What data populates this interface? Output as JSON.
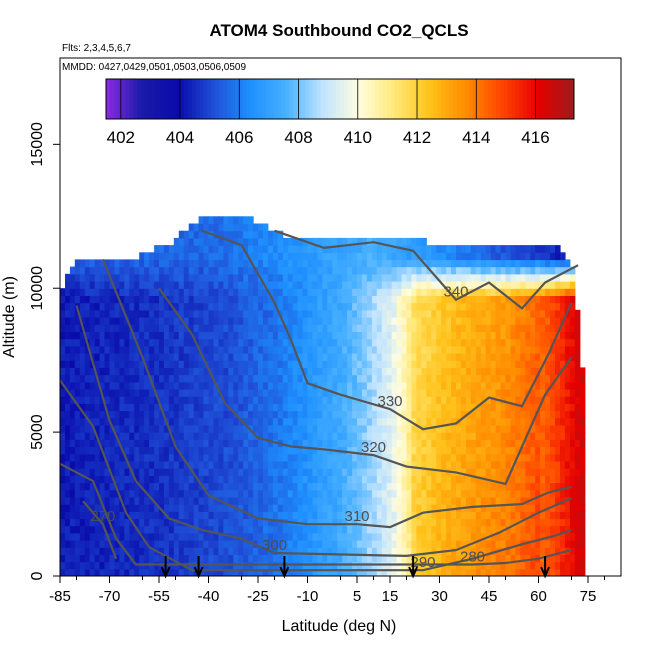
{
  "chart_data": {
    "type": "heatmap",
    "title": "ATOM4 Southbound CO2_QCLS",
    "subtitle_flights": "Flts: 2,3,4,5,6,7",
    "subtitle_dates": "MMDD: 0427,0429,0501,0503,0506,0509",
    "xlabel": "Latitude (deg N)",
    "ylabel": "Altitude (m)",
    "xlim": [
      -85,
      85
    ],
    "ylim": [
      0,
      18000
    ],
    "x_ticks": [
      -85,
      -70,
      -55,
      -40,
      -25,
      -10,
      5,
      15,
      30,
      45,
      60,
      75
    ],
    "y_ticks": [
      0,
      5000,
      10000,
      15000
    ],
    "colorbar": {
      "range": [
        401.5,
        417.3
      ],
      "ticks": [
        402,
        404,
        406,
        408,
        410,
        412,
        414,
        416
      ],
      "colors": [
        "#8a2be2",
        "#1a1aa8",
        "#0a0aaa",
        "#1f4fd6",
        "#1e90ff",
        "#48b0ff",
        "#bfe3ff",
        "#fffde0",
        "#ffe97a",
        "#ffc21a",
        "#ff8c00",
        "#ff4500",
        "#e60000",
        "#9e1b1b"
      ]
    },
    "field_model": {
      "gradient_breaks": [
        [
          -85,
          404.2
        ],
        [
          -55,
          404.6
        ],
        [
          -35,
          405.1
        ],
        [
          -20,
          405.8
        ],
        [
          -10,
          406.6
        ],
        [
          0,
          407.4
        ],
        [
          8,
          408.4
        ],
        [
          15,
          409.4
        ],
        [
          22,
          411.6
        ],
        [
          35,
          412.6
        ],
        [
          50,
          413.4
        ],
        [
          62,
          414.6
        ],
        [
          72,
          416.4
        ]
      ],
      "upper_band": {
        "above_altitude": 9500,
        "values": [
          [
            -40,
            405.6
          ],
          [
            10,
            407.5
          ],
          [
            30,
            406.3
          ],
          [
            65,
            404.4
          ]
        ]
      }
    },
    "coverage": [
      [
        -85,
        0,
        10000
      ],
      [
        -80,
        0,
        11000
      ],
      [
        -72,
        0,
        11000
      ],
      [
        -62,
        0,
        11000
      ],
      [
        -52,
        0,
        11500
      ],
      [
        -43,
        0,
        12400
      ],
      [
        -30,
        0,
        12400
      ],
      [
        -18,
        0,
        11700
      ],
      [
        -5,
        0,
        11700
      ],
      [
        5,
        0,
        11700
      ],
      [
        15,
        0,
        11700
      ],
      [
        25,
        0,
        11500
      ],
      [
        35,
        0,
        11300
      ],
      [
        45,
        0,
        11300
      ],
      [
        55,
        0,
        11300
      ],
      [
        65,
        0,
        11300
      ],
      [
        70,
        0,
        10500
      ],
      [
        73,
        0,
        6500
      ]
    ],
    "contours": [
      {
        "label": "340",
        "points": [
          [
            -20,
            12000
          ],
          [
            -5,
            11400
          ],
          [
            10,
            11600
          ],
          [
            22,
            11300
          ],
          [
            35,
            9600
          ],
          [
            45,
            10200
          ],
          [
            55,
            9300
          ],
          [
            62,
            10200
          ],
          [
            72,
            10800
          ]
        ]
      },
      {
        "label": "330",
        "points": [
          [
            -42,
            12000
          ],
          [
            -30,
            11500
          ],
          [
            -20,
            9500
          ],
          [
            -15,
            8200
          ],
          [
            -10,
            6700
          ],
          [
            0,
            6300
          ],
          [
            15,
            5800
          ],
          [
            25,
            5100
          ],
          [
            35,
            5300
          ],
          [
            45,
            6200
          ],
          [
            55,
            5900
          ],
          [
            63,
            7700
          ],
          [
            70,
            9500
          ]
        ]
      },
      {
        "label": "320",
        "points": [
          [
            -55,
            10000
          ],
          [
            -45,
            8400
          ],
          [
            -35,
            6000
          ],
          [
            -25,
            4800
          ],
          [
            -15,
            4500
          ],
          [
            -5,
            4400
          ],
          [
            10,
            4200
          ],
          [
            20,
            3800
          ],
          [
            35,
            3600
          ],
          [
            50,
            3200
          ],
          [
            62,
            6300
          ],
          [
            70,
            7600
          ]
        ]
      },
      {
        "label": "310",
        "points": [
          [
            -72,
            11000
          ],
          [
            -60,
            7600
          ],
          [
            -50,
            4500
          ],
          [
            -40,
            2800
          ],
          [
            -25,
            2000
          ],
          [
            -10,
            1800
          ],
          [
            5,
            1800
          ],
          [
            15,
            1700
          ],
          [
            25,
            2200
          ],
          [
            40,
            2400
          ],
          [
            55,
            2500
          ],
          [
            63,
            2900
          ],
          [
            70,
            3100
          ]
        ]
      },
      {
        "label": "300",
        "points": [
          [
            -80,
            9400
          ],
          [
            -70,
            5400
          ],
          [
            -62,
            3300
          ],
          [
            -52,
            2000
          ],
          [
            -42,
            1600
          ],
          [
            -30,
            1300
          ],
          [
            -20,
            800
          ],
          [
            20,
            700
          ],
          [
            35,
            900
          ],
          [
            48,
            1500
          ],
          [
            60,
            2200
          ],
          [
            70,
            2700
          ]
        ]
      },
      {
        "label": "290",
        "points": [
          [
            -85,
            6800
          ],
          [
            -75,
            5200
          ],
          [
            -65,
            2200
          ],
          [
            -58,
            1000
          ],
          [
            -45,
            200
          ],
          [
            25,
            200
          ],
          [
            40,
            600
          ],
          [
            55,
            1100
          ],
          [
            65,
            1400
          ],
          [
            70,
            1600
          ]
        ]
      },
      {
        "label": "280",
        "points": [
          [
            -85,
            3900
          ],
          [
            -75,
            3300
          ],
          [
            -68,
            1300
          ],
          [
            -62,
            400
          ],
          [
            40,
            400
          ],
          [
            50,
            450
          ],
          [
            60,
            600
          ],
          [
            70,
            900
          ]
        ]
      },
      {
        "label": "270",
        "points": [
          [
            -78,
            2600
          ],
          [
            -72,
            1800
          ],
          [
            -68,
            600
          ]
        ]
      }
    ],
    "arrow_latitudes": [
      -53,
      -43,
      -17,
      22,
      62
    ]
  }
}
